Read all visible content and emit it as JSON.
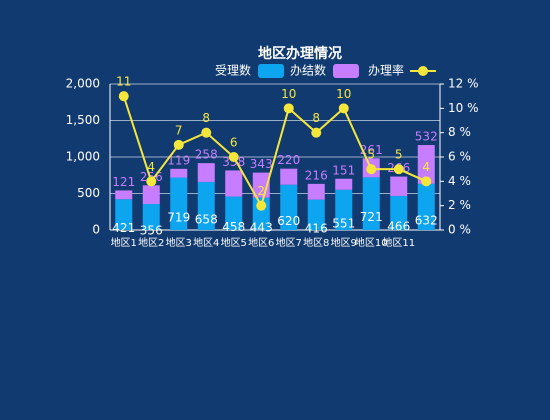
{
  "chart_data": {
    "type": "bar",
    "title": "地区办理情况",
    "categories": [
      "地区1",
      "地区2",
      "地区3",
      "地区4",
      "地区5",
      "地区6",
      "地区7",
      "地区8",
      "地区9",
      "地区10",
      "地区11",
      null
    ],
    "series": [
      {
        "name": "受理数",
        "color": "#0ea5f0",
        "values": [
          421,
          356,
          719,
          658,
          458,
          443,
          620,
          416,
          551,
          721,
          466,
          632
        ]
      },
      {
        "name": "办结数",
        "color": "#c77dff",
        "values": [
          121,
          256,
          119,
          258,
          358,
          343,
          220,
          216,
          151,
          261,
          266,
          532
        ]
      },
      {
        "name": "办理率",
        "color": "#f5e63c",
        "type": "line",
        "axis": "y2",
        "values": [
          11,
          4,
          7,
          8,
          6,
          2,
          10,
          8,
          10,
          5,
          5,
          4
        ]
      }
    ],
    "stacked": true,
    "ylim": [
      0,
      2000
    ],
    "yticks": [
      0,
      500,
      {
        "value": 1000,
        "label": "1,000"
      },
      {
        "value": 1500,
        "label": "1,500"
      },
      {
        "value": 2000,
        "label": "2,000"
      }
    ],
    "y2lim": [
      0,
      12
    ],
    "y2ticks": [
      {
        "value": 0,
        "label": "0 %"
      },
      {
        "value": 2,
        "label": "2 %"
      },
      {
        "value": 4,
        "label": "4 %"
      },
      {
        "value": 6,
        "label": "6 %"
      },
      {
        "value": 8,
        "label": "8 %"
      },
      {
        "value": 10,
        "label": "10 %"
      },
      {
        "value": 12,
        "label": "12 %"
      }
    ],
    "grid": true
  }
}
